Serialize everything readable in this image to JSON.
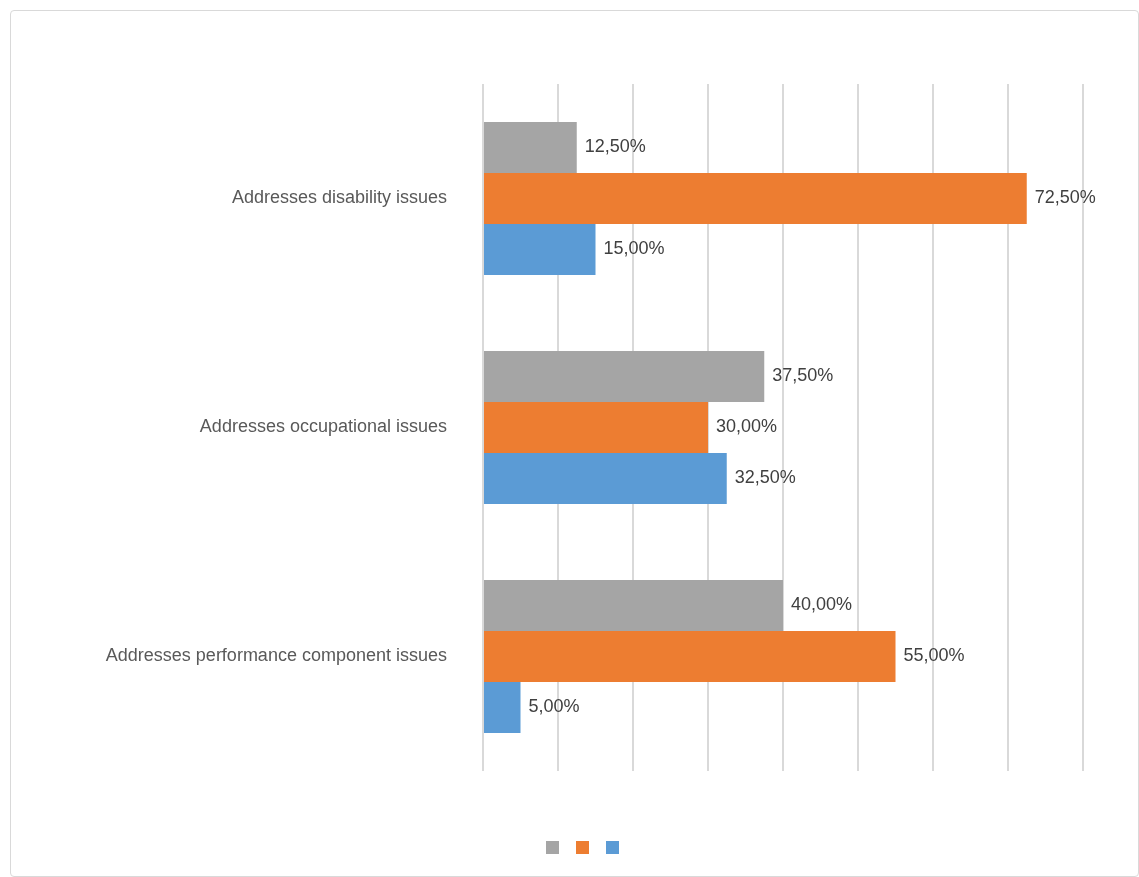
{
  "chart_data": {
    "type": "bar",
    "orientation": "horizontal",
    "categories": [
      "Addresses disability issues",
      "Addresses occupational issues",
      "Addresses performance component issues"
    ],
    "series": [
      {
        "color": "#a5a5a5",
        "values": [
          12.5,
          37.5,
          40
        ],
        "value_labels": [
          "12,50%",
          "37,50%",
          "40,00%"
        ]
      },
      {
        "color": "#ed7d31",
        "values": [
          72.5,
          30,
          55
        ],
        "value_labels": [
          "72,50%",
          "30,00%",
          "55,00%"
        ]
      },
      {
        "color": "#5b9bd5",
        "values": [
          15,
          32.5,
          5
        ],
        "value_labels": [
          "15,00%",
          "32,50%",
          "5,00%"
        ]
      }
    ],
    "xlim": [
      0,
      80
    ],
    "xticks": [
      {
        "value": 0,
        "label": null
      },
      {
        "value": 10,
        "label": null
      },
      {
        "value": 20,
        "label": null
      },
      {
        "value": 30,
        "label": null
      },
      {
        "value": 40,
        "label": null
      },
      {
        "value": 50,
        "label": null
      },
      {
        "value": 60,
        "label": null
      },
      {
        "value": 70,
        "label": null
      },
      {
        "value": 80,
        "label": null
      }
    ],
    "grid": "x",
    "tick_labels": "y"
  }
}
